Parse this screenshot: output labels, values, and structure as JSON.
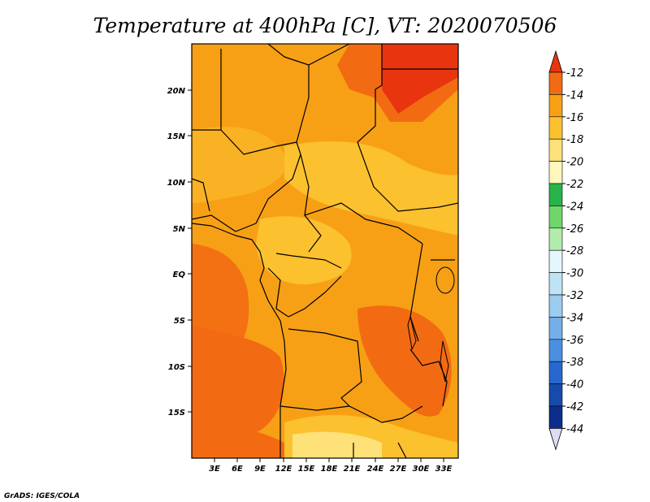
{
  "title": "Temperature at 400hPa [C], VT: 2020070506",
  "credit": "GrADS: IGES/COLA",
  "map": {
    "lat_ticks": [
      "20N",
      "15N",
      "10N",
      "5N",
      "EQ",
      "5S",
      "10S",
      "15S"
    ],
    "lon_ticks": [
      "3E",
      "6E",
      "9E",
      "12E",
      "15E",
      "18E",
      "21E",
      "24E",
      "27E",
      "30E",
      "33E"
    ]
  },
  "colorbar": {
    "labels": [
      "-12",
      "-14",
      "-16",
      "-18",
      "-20",
      "-22",
      "-24",
      "-26",
      "-28",
      "-30",
      "-32",
      "-34",
      "-36",
      "-38",
      "-40",
      "-42",
      "-44"
    ],
    "colors": [
      "#e8350f",
      "#f26b12",
      "#f7a016",
      "#fbc12f",
      "#fee178",
      "#fff7bc",
      "#27b44a",
      "#6fd66a",
      "#b2ecad",
      "#e4f7fb",
      "#bfe3f6",
      "#9cccf0",
      "#74afe8",
      "#4a8fe0",
      "#2867cf",
      "#164aad",
      "#0c2d8c",
      "#0a1470",
      "#dcdcf4"
    ]
  }
}
